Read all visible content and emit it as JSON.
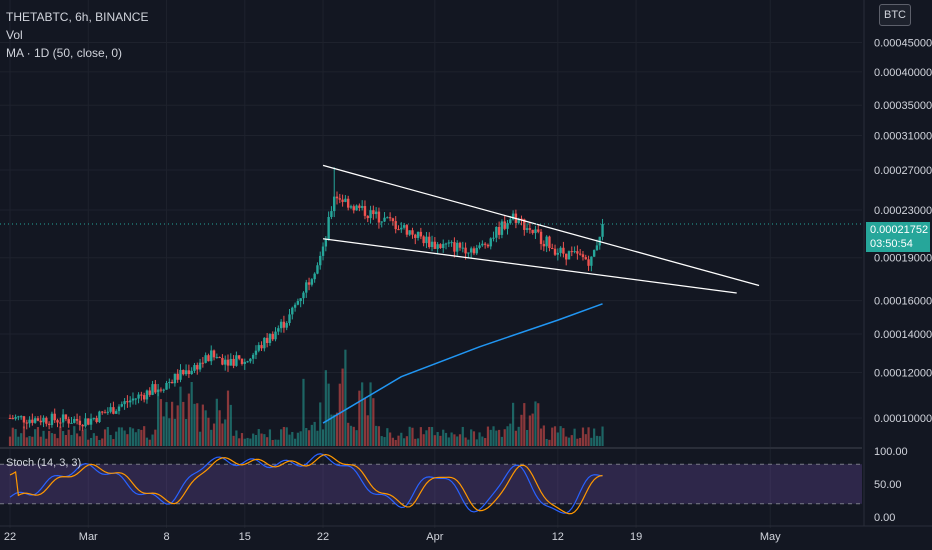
{
  "legend": {
    "symbol": "THETABTC, 6h, BINANCE",
    "volume": "Vol",
    "ma": "MA · 1D (50, close, 0)"
  },
  "currency_button": "BTC",
  "price_badge": {
    "price": "0.00021752",
    "countdown": "03:50:54"
  },
  "colors": {
    "background": "#131722",
    "up": "#26a69a",
    "down": "#ef5350",
    "ma": "#2196f3",
    "trendline": "#ffffff",
    "stoch_k": "#2962ff",
    "stoch_d": "#ff9800",
    "stoch_band": "#7e57c2"
  },
  "chart_data": [
    {
      "type": "candlestick",
      "symbol": "THETABTC",
      "interval": "6h",
      "exchange": "BINANCE",
      "price_axis_ticks": [
        "0.00045000",
        "0.00040000",
        "0.00035000",
        "0.00031000",
        "0.00027000",
        "0.00023000",
        "0.00019000",
        "0.00016000",
        "0.00014000",
        "0.00012000",
        "0.00010000"
      ],
      "date_axis_ticks": [
        "22",
        "Mar",
        "8",
        "15",
        "22",
        "Apr",
        "12",
        "19",
        "May"
      ],
      "scale": "log",
      "last_price": 0.00021752,
      "ohlc_anchors": [
        {
          "date": "Feb 22",
          "close": 0.0001
        },
        {
          "date": "Mar 1",
          "close": 9.9e-05
        },
        {
          "date": "Mar 8",
          "close": 0.000115
        },
        {
          "date": "Mar 12",
          "close": 0.000128
        },
        {
          "date": "Mar 15",
          "close": 0.000125
        },
        {
          "date": "Mar 19",
          "close": 0.00015
        },
        {
          "date": "Mar 22",
          "close": 0.000195
        },
        {
          "date": "Mar 23",
          "high": 0.000273,
          "close": 0.000245
        },
        {
          "date": "Mar 25",
          "close": 0.000232
        },
        {
          "date": "Mar 29",
          "close": 0.000215
        },
        {
          "date": "Apr 1",
          "close": 0.0002
        },
        {
          "date": "Apr 5",
          "close": 0.000197
        },
        {
          "date": "Apr 8",
          "close": 0.000225
        },
        {
          "date": "Apr 12",
          "close": 0.000195
        },
        {
          "date": "Apr 15",
          "low": 0.00018,
          "close": 0.000188
        },
        {
          "date": "Apr 16",
          "close": 0.00021752
        }
      ],
      "ma_1d_50": [
        {
          "date": "Mar 22",
          "value": 9.8e-05
        },
        {
          "date": "Mar 29",
          "value": 0.000118
        },
        {
          "date": "Apr 5",
          "value": 0.000133
        },
        {
          "date": "Apr 12",
          "value": 0.000148
        },
        {
          "date": "Apr 16",
          "value": 0.000158
        }
      ],
      "trendlines": [
        {
          "name": "upper",
          "from": {
            "date": "Mar 22",
            "price": 0.000275
          },
          "to": {
            "date": "Apr 30",
            "price": 0.00017
          }
        },
        {
          "name": "lower",
          "from": {
            "date": "Mar 22",
            "price": 0.000205
          },
          "to": {
            "date": "Apr 28",
            "price": 0.000165
          }
        }
      ]
    },
    {
      "type": "line",
      "indicator": "Stoch",
      "label": "Stoch (14, 3, 3)",
      "ylim": [
        0,
        100
      ],
      "y_ticks": [
        "100.00",
        "50.00",
        "0.00"
      ],
      "band": [
        20,
        80
      ],
      "k_anchors": [
        {
          "date": "Feb 22",
          "value": 30
        },
        {
          "date": "Mar 1",
          "value": 75
        },
        {
          "date": "Mar 8",
          "value": 25
        },
        {
          "date": "Mar 12",
          "value": 85
        },
        {
          "date": "Mar 19",
          "value": 80
        },
        {
          "date": "Mar 22",
          "value": 90
        },
        {
          "date": "Mar 29",
          "value": 20
        },
        {
          "date": "Apr 1",
          "value": 65
        },
        {
          "date": "Apr 5",
          "value": 10
        },
        {
          "date": "Apr 8",
          "value": 75
        },
        {
          "date": "Apr 12",
          "value": 5
        },
        {
          "date": "Apr 16",
          "value": 68
        }
      ]
    }
  ]
}
